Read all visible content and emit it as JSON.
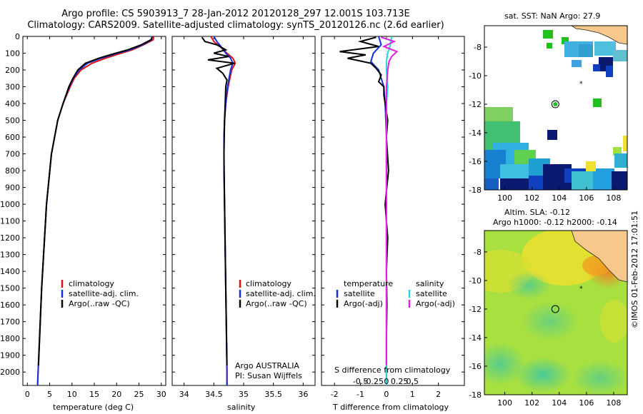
{
  "titles": {
    "line1": "Argo profile: CS 5903913_7 28-Jan-2012 20120128_297 12.001S 103.713E",
    "line2": "Climatology: CARS2009. Satellite-adjusted climatology: synTS_20120126.nc (2.6d earlier)"
  },
  "stamp": "©IMOS 01-Feb-2012 17:01:51",
  "colors": {
    "clim": "#e01010",
    "sat": "#1030e0",
    "argo": "#000000",
    "sat_s": "#20d8e0",
    "argo_s": "#e020e0"
  },
  "chart_data": [
    {
      "type": "line",
      "name": "temperature",
      "xlabel": "temperature (deg C)",
      "ylabel": "",
      "xlim": [
        -1,
        31
      ],
      "ylim": [
        0,
        2080
      ],
      "xticks": [
        0,
        5,
        10,
        15,
        20,
        25,
        30
      ],
      "yticks": [
        0,
        100,
        200,
        300,
        400,
        500,
        600,
        700,
        800,
        900,
        1000,
        1100,
        1200,
        1300,
        1400,
        1500,
        1600,
        1700,
        1800,
        1900,
        2000
      ],
      "legend": [
        "climatology",
        "satellite-adj. clim.",
        "Argo(..raw -QC)"
      ],
      "series": [
        {
          "name": "climatology",
          "color_key": "clim",
          "depth": [
            0,
            20,
            50,
            80,
            100,
            130,
            160,
            200,
            250,
            300,
            400,
            500,
            700,
            1000,
            1500,
            2000,
            2080
          ],
          "values": [
            28.3,
            28.2,
            26.0,
            23.5,
            21.0,
            17.5,
            14.5,
            12.0,
            10.5,
            9.6,
            8.0,
            6.8,
            5.4,
            4.3,
            3.2,
            2.4,
            2.3
          ]
        },
        {
          "name": "satellite-adj. clim.",
          "color_key": "sat",
          "depth": [
            0,
            20,
            50,
            80,
            100,
            130,
            160,
            200,
            250,
            300,
            400,
            500,
            700,
            1000,
            1500,
            2000,
            2080
          ],
          "values": [
            28.0,
            27.8,
            25.8,
            23.0,
            20.2,
            16.5,
            13.5,
            11.6,
            10.3,
            9.4,
            8.0,
            6.8,
            5.4,
            4.3,
            3.2,
            2.4,
            2.3
          ]
        },
        {
          "name": "Argo(..raw -QC)",
          "color_key": "argo",
          "depth": [
            5,
            20,
            50,
            80,
            100,
            130,
            160,
            200,
            250,
            300,
            400,
            500,
            700,
            1000,
            1500,
            1960
          ],
          "values": [
            27.9,
            27.7,
            25.5,
            22.5,
            19.8,
            16.0,
            13.0,
            11.3,
            10.2,
            9.3,
            8.0,
            6.8,
            5.4,
            4.3,
            3.2,
            2.5
          ]
        }
      ]
    },
    {
      "type": "line",
      "name": "salinity",
      "xlabel": "salinity",
      "xlim": [
        33.8,
        36.2
      ],
      "ylim": [
        0,
        2080
      ],
      "xticks": [
        34,
        34.5,
        35,
        35.5,
        36
      ],
      "legend": [
        "climatology",
        "satellite-adj. clim.",
        "Argo(..raw -QC)"
      ],
      "annotations": [
        "Argo AUSTRALIA",
        "PI: Susan Wijffels"
      ],
      "series": [
        {
          "name": "climatology",
          "color_key": "clim",
          "depth": [
            0,
            30,
            60,
            100,
            130,
            160,
            200,
            300,
            400,
            500,
            600,
            800,
            1000,
            1500,
            2000,
            2080
          ],
          "values": [
            34.45,
            34.5,
            34.6,
            34.72,
            34.82,
            34.86,
            34.8,
            34.74,
            34.7,
            34.68,
            34.67,
            34.67,
            34.68,
            34.7,
            34.72,
            34.72
          ]
        },
        {
          "name": "satellite-adj. clim.",
          "color_key": "sat",
          "depth": [
            0,
            30,
            60,
            100,
            130,
            160,
            200,
            300,
            400,
            500,
            600,
            800,
            1000,
            1500,
            2000,
            2080
          ],
          "values": [
            34.5,
            34.55,
            34.62,
            34.7,
            34.78,
            34.82,
            34.78,
            34.73,
            34.7,
            34.68,
            34.67,
            34.67,
            34.68,
            34.7,
            34.72,
            34.72
          ]
        },
        {
          "name": "Argo(..raw -QC)",
          "color_key": "argo",
          "depth": [
            5,
            30,
            50,
            80,
            100,
            120,
            140,
            160,
            190,
            220,
            260,
            300,
            400,
            500,
            700,
            1000,
            1500,
            1960
          ],
          "values": [
            34.3,
            34.35,
            34.55,
            34.7,
            34.5,
            34.75,
            34.4,
            34.85,
            34.55,
            34.65,
            34.72,
            34.7,
            34.69,
            34.68,
            34.67,
            34.68,
            34.7,
            34.72
          ]
        }
      ]
    },
    {
      "type": "line",
      "name": "difference",
      "xlabel": "T difference from climatology",
      "xlabel_top": "S difference from climatology",
      "xlim": [
        -2.5,
        3.0
      ],
      "ylim": [
        0,
        2080
      ],
      "xticks": [
        -2,
        -1,
        0,
        1,
        2
      ],
      "s_ticks": [
        "-0.5",
        "-0.25",
        "0",
        "0.25",
        "0.5"
      ],
      "legend_left": {
        "head": "temperature",
        "items": [
          "satellite",
          "Argo(-adj)"
        ]
      },
      "legend_right": {
        "head": "salinity",
        "items": [
          "satellite",
          "Argo(-adj)"
        ]
      },
      "series": [
        {
          "name": "temperature satellite",
          "color_key": "sat",
          "depth": [
            0,
            50,
            100,
            150,
            200,
            250,
            300,
            400,
            600,
            1000,
            1500,
            2080
          ],
          "values": [
            -0.3,
            -0.2,
            -0.5,
            -0.6,
            -0.3,
            -0.2,
            -0.1,
            -0.05,
            0,
            0,
            0,
            0
          ]
        },
        {
          "name": "temperature Argo(-adj)",
          "color_key": "argo",
          "depth": [
            5,
            30,
            60,
            90,
            110,
            130,
            160,
            190,
            230,
            270,
            300,
            350,
            400,
            500,
            600,
            800,
            1000,
            1200,
            1400,
            1600,
            1800,
            1960
          ],
          "values": [
            -0.4,
            -1.0,
            -0.3,
            -1.8,
            -0.8,
            -1.5,
            -0.6,
            -0.4,
            -0.2,
            -0.3,
            -0.1,
            -0.1,
            -0.05,
            0.05,
            0,
            0.08,
            -0.05,
            0.05,
            0,
            0.02,
            0,
            0
          ]
        },
        {
          "name": "salinity satellite",
          "color_key": "sat_s",
          "depth": [
            0,
            50,
            100,
            150,
            200,
            300,
            400,
            600,
            1000,
            1500,
            2080
          ],
          "values": [
            0.2,
            0.15,
            0.05,
            0.0,
            0.0,
            0.05,
            0.0,
            0,
            0,
            0,
            0
          ]
        },
        {
          "name": "salinity Argo(-adj)",
          "color_key": "argo_s",
          "depth": [
            5,
            30,
            60,
            90,
            120,
            150,
            200,
            300,
            400,
            600,
            1000,
            1500,
            1960
          ],
          "values": [
            -0.2,
            0.3,
            -0.1,
            0.4,
            0.2,
            0.1,
            0.05,
            0.0,
            0.0,
            0.0,
            0.0,
            0.0,
            0.0
          ]
        }
      ]
    },
    {
      "type": "heatmap",
      "name": "sst-map",
      "title": "sat. SST: NaN Argo: 27.9",
      "xlim": [
        98.5,
        109
      ],
      "ylim": [
        -18,
        -6.5
      ],
      "xticks": [
        100,
        102,
        104,
        106,
        108
      ],
      "yticks": [
        -8,
        -10,
        -12,
        -14,
        -16,
        -18
      ],
      "argo_position": {
        "lon": 103.713,
        "lat": -12.001
      },
      "star": {
        "lon": 105.6,
        "lat": -10.5
      }
    },
    {
      "type": "heatmap",
      "name": "sla-map",
      "title1": "Altim. SLA: -0.12",
      "title2": "Argo h1000: -0.12 h2000: -0.14",
      "xlim": [
        98.5,
        109
      ],
      "ylim": [
        -18,
        -6.5
      ],
      "xticks": [
        100,
        102,
        104,
        106,
        108
      ],
      "yticks": [
        -8,
        -10,
        -12,
        -14,
        -16,
        -18
      ],
      "argo_position": {
        "lon": 103.713,
        "lat": -12.001
      },
      "star": {
        "lon": 105.6,
        "lat": -10.5
      }
    }
  ]
}
